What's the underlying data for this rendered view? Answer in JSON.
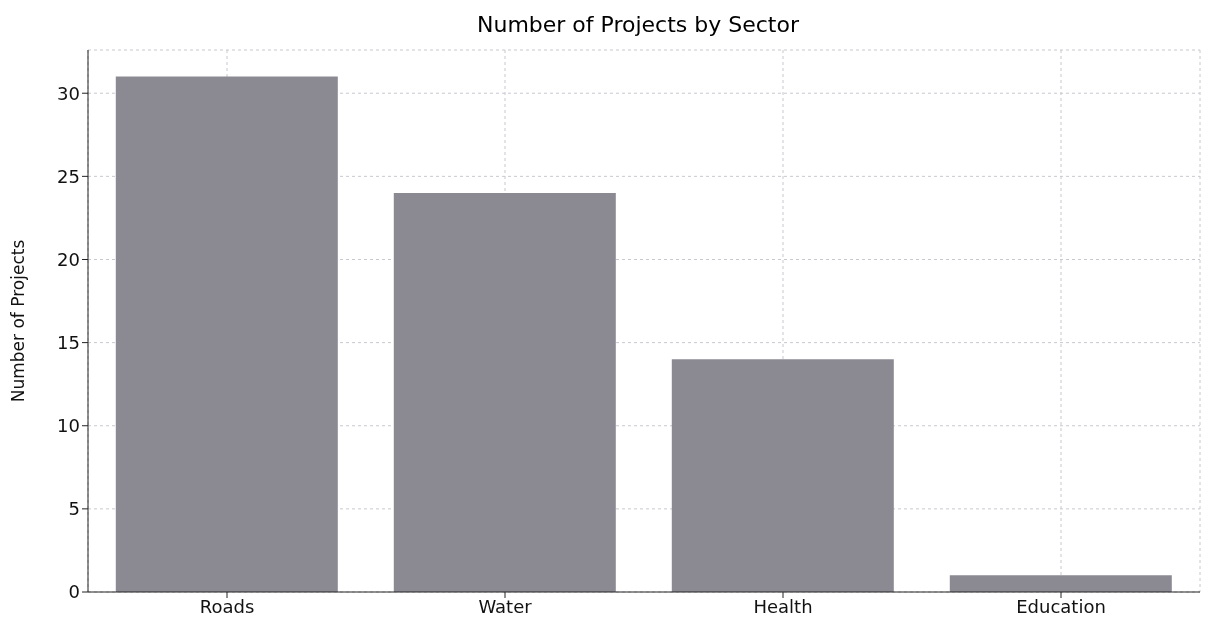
{
  "chart_data": {
    "type": "bar",
    "title": "Number of Projects by Sector",
    "ylabel": "Number of Projects",
    "categories": [
      "Roads",
      "Water",
      "Health",
      "Education"
    ],
    "values": [
      31,
      24,
      14,
      1
    ],
    "color": "#8b8a93",
    "ylim": [
      0,
      32.6
    ],
    "yticks": [
      0,
      5,
      10,
      15,
      20,
      25,
      30
    ],
    "grid": true
  }
}
